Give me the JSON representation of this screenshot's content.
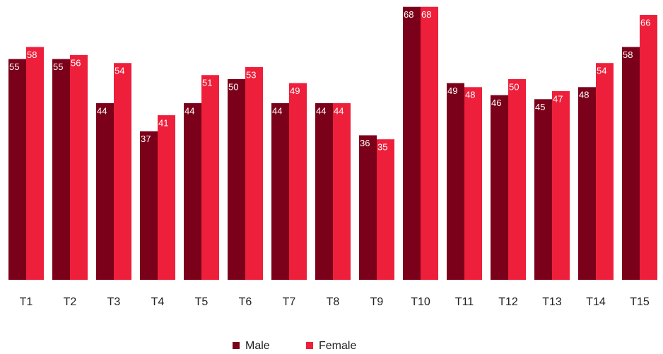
{
  "chart_data": {
    "type": "bar",
    "categories": [
      "T1",
      "T2",
      "T3",
      "T4",
      "T5",
      "T6",
      "T7",
      "T8",
      "T9",
      "T10",
      "T11",
      "T12",
      "T13",
      "T14",
      "T15"
    ],
    "series": [
      {
        "name": "Male",
        "color": "#7b0019",
        "values": [
          55,
          55,
          44,
          37,
          44,
          50,
          44,
          44,
          36,
          68,
          49,
          46,
          45,
          48,
          58
        ]
      },
      {
        "name": "Female",
        "color": "#ee1f3b",
        "values": [
          58,
          56,
          54,
          41,
          51,
          53,
          49,
          44,
          35,
          68,
          48,
          50,
          47,
          54,
          66
        ]
      }
    ],
    "ylim": [
      0,
      69
    ],
    "legend": "bottom"
  }
}
